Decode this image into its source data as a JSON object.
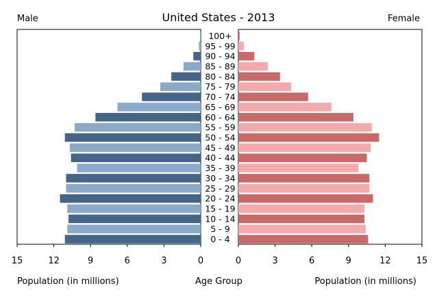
{
  "chart_data": {
    "type": "bar",
    "title": "United States - 2013",
    "left_label": "Male",
    "right_label": "Female",
    "xlabel_left": "Population (in millions)",
    "xlabel_center": "Age Group",
    "xlabel_right": "Population (in millions)",
    "xlim": [
      0,
      15
    ],
    "xticks": [
      15,
      12,
      9,
      6,
      3,
      0
    ],
    "categories": [
      "0 - 4",
      "5 - 9",
      "10 - 14",
      "15 - 19",
      "20 - 24",
      "25 - 29",
      "30 - 34",
      "35 - 39",
      "40 - 44",
      "45 - 49",
      "50 - 54",
      "55 - 59",
      "60 - 64",
      "65 - 69",
      "70 - 74",
      "75 - 79",
      "80 - 84",
      "85 - 89",
      "90 - 94",
      "95 - 99",
      "100+"
    ],
    "series": [
      {
        "name": "Male",
        "values": [
          11.1,
          10.9,
          10.8,
          10.9,
          11.5,
          11.0,
          11.0,
          10.1,
          10.6,
          10.7,
          11.1,
          10.3,
          8.6,
          6.8,
          4.8,
          3.3,
          2.4,
          1.4,
          0.6,
          0.15,
          0.03
        ]
      },
      {
        "name": "Female",
        "values": [
          10.6,
          10.4,
          10.3,
          10.3,
          11.0,
          10.7,
          10.7,
          9.8,
          10.5,
          10.8,
          11.5,
          10.9,
          9.4,
          7.6,
          5.7,
          4.3,
          3.4,
          2.4,
          1.3,
          0.45,
          0.1
        ]
      }
    ],
    "colors": {
      "male_dark": "#456589",
      "male_light": "#8BA9C9",
      "female_dark": "#C8696A",
      "female_light": "#F2AAAA"
    }
  }
}
